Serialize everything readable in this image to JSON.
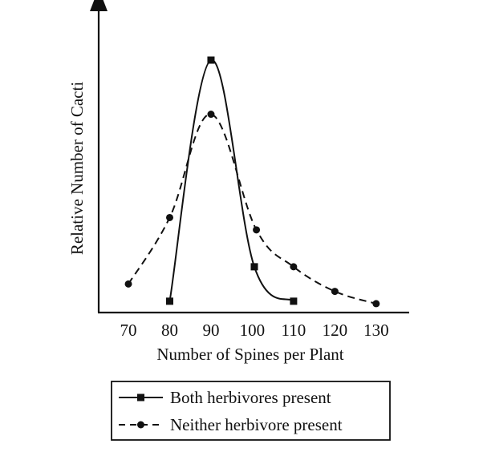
{
  "chart_data": {
    "type": "line",
    "xlabel": "Number of Spines per Plant",
    "ylabel": "Relative Number of Cacti",
    "xlim": [
      63,
      138
    ],
    "ylim": [
      0,
      100
    ],
    "x_ticks": [
      70,
      80,
      90,
      100,
      110,
      120,
      130
    ],
    "y_ticks_shown": false,
    "grid": false,
    "legend": {
      "placement": "bottom"
    },
    "series": [
      {
        "name": "Both herbivores present",
        "line_style": "solid",
        "marker": "square",
        "color": "#111111",
        "x": [
          80,
          90,
          100.5,
          110
        ],
        "y": [
          2,
          100,
          16,
          2
        ]
      },
      {
        "name": "Neither herbivore present",
        "line_style": "dashed",
        "marker": "circle",
        "color": "#111111",
        "x": [
          70,
          80,
          90,
          101,
          110,
          120,
          130
        ],
        "y": [
          9,
          36,
          78,
          31,
          16,
          6,
          1
        ]
      }
    ]
  }
}
